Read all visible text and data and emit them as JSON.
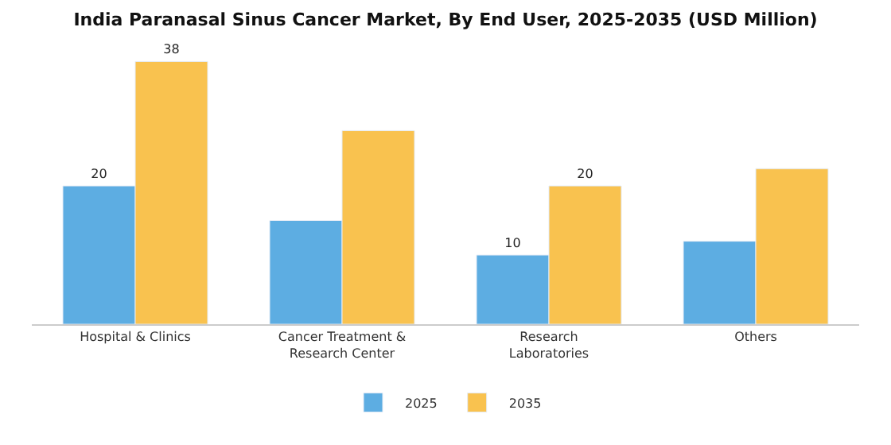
{
  "chart_data": {
    "type": "bar",
    "title": "India Paranasal Sinus Cancer Market, By End User, 2025-2035 (USD Million)",
    "categories": [
      "Hospital & Clinics",
      "Cancer Treatment &\nResearch Center",
      "Research\nLaboratories",
      "Others"
    ],
    "series": [
      {
        "name": "2025",
        "color": "#5dade2",
        "values": [
          20,
          15,
          10,
          12
        ],
        "value_labels": [
          "20",
          null,
          "10",
          null
        ]
      },
      {
        "name": "2035",
        "color": "#f9c24f",
        "values": [
          38,
          28,
          20,
          22.5
        ],
        "value_labels": [
          "38",
          null,
          "20",
          null
        ]
      }
    ],
    "tick_labels": "x",
    "legend": "bottom"
  }
}
